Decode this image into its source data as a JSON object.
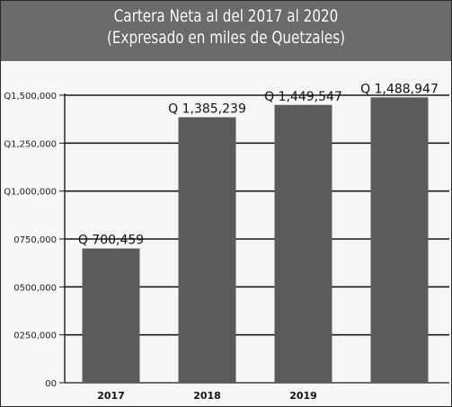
{
  "header": {
    "title_line1": "Cartera Neta al del 2017 al 2020",
    "title_line2": "(Expresado en miles de Quetzales)"
  },
  "colors": {
    "title_band": "#6a6b6d",
    "bar": "#5a5b5d",
    "grid": "#1a1a1a",
    "background": "#f6f7f8"
  },
  "chart_data": {
    "type": "bar",
    "title": "Cartera Neta al del 2017 al 2020 (Expresado en miles de Quetzales)",
    "categories": [
      "2017",
      "2018",
      "2019",
      ""
    ],
    "values": [
      700459,
      1385239,
      1449547,
      1488947
    ],
    "data_labels": [
      "Q 700,459",
      "Q 1,385,239",
      "Q 1,449,547",
      "Q 1,488,947"
    ],
    "y_ticks": [
      0,
      250000,
      500000,
      750000,
      1000000,
      1250000,
      1500000
    ],
    "y_tick_labels": [
      "00",
      "0250,000",
      "0500,000",
      "0750,000",
      "Q1,000,000",
      "Q1,250,000",
      "Q1,500,000"
    ],
    "ylim": [
      0,
      1500000
    ],
    "grid": true,
    "legend": "none",
    "xlabel": "",
    "ylabel": ""
  }
}
